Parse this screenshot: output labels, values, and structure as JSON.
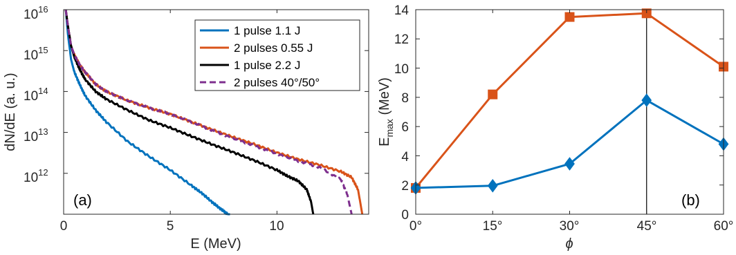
{
  "colors": {
    "blue": "#0072BD",
    "orange": "#D95319",
    "black": "#000000",
    "purple": "#7E2F8E",
    "axis": "#262626"
  },
  "chart_data": [
    {
      "type": "line",
      "panel_label": "(a)",
      "xlabel": "E (MeV)",
      "ylabel": "dN/dE (a. u.)",
      "xlim": [
        0,
        14.3
      ],
      "ylim": [
        100000000000.0,
        1e+16
      ],
      "yscale": "log",
      "x_ticks": [
        0,
        5,
        10
      ],
      "x_tick_labels": [
        "0",
        "5",
        "10"
      ],
      "y_ticks": [
        1000000000000.0,
        10000000000000.0,
        100000000000000.0,
        1000000000000000.0,
        1e+16
      ],
      "y_tick_labels": [
        {
          "base": "10",
          "exp": "12"
        },
        {
          "base": "10",
          "exp": "13"
        },
        {
          "base": "10",
          "exp": "14"
        },
        {
          "base": "10",
          "exp": "15"
        },
        {
          "base": "10",
          "exp": "16"
        }
      ],
      "legend_position": "top-right",
      "series": [
        {
          "name": "1 pulse 1.1 J",
          "color": "#0072BD",
          "style": "solid",
          "x": [
            0.1,
            0.2,
            0.35,
            0.5,
            0.75,
            1.0,
            1.5,
            2.0,
            3.0,
            4.0,
            5.0,
            6.0,
            6.5,
            7.0,
            7.4,
            7.7,
            7.8
          ],
          "y": [
            1e+16,
            2500000000000000.0,
            600000000000000.0,
            300000000000000.0,
            150000000000000.0,
            80000000000000.0,
            35000000000000.0,
            18000000000000.0,
            6000000000000.0,
            2600000000000.0,
            1200000000000.0,
            500000000000.0,
            320000000000.0,
            190000000000.0,
            130000000000.0,
            100000000000.0,
            100000000000.0
          ]
        },
        {
          "name": "2 pulses 0.55 J",
          "color": "#D95319",
          "style": "solid",
          "x": [
            0.1,
            0.2,
            0.35,
            0.5,
            0.75,
            1.0,
            1.5,
            2.0,
            3.0,
            4.0,
            5.0,
            6.0,
            7.0,
            8.0,
            9.0,
            10.0,
            11.0,
            12.0,
            13.0,
            13.5,
            13.8,
            14.0
          ],
          "y": [
            1e+16,
            4000000000000000.0,
            1300000000000000.0,
            800000000000000.0,
            450000000000000.0,
            300000000000000.0,
            150000000000000.0,
            100000000000000.0,
            60000000000000.0,
            40000000000000.0,
            28000000000000.0,
            18000000000000.0,
            11500000000000.0,
            7500000000000.0,
            5000000000000.0,
            3200000000000.0,
            2200000000000.0,
            1600000000000.0,
            1100000000000.0,
            800000000000.0,
            400000000000.0,
            100000000000.0
          ]
        },
        {
          "name": "1 pulse 2.2 J",
          "color": "#000000",
          "style": "solid",
          "x": [
            0.1,
            0.2,
            0.35,
            0.5,
            0.75,
            1.0,
            1.5,
            2.0,
            3.0,
            4.0,
            5.0,
            6.0,
            7.0,
            8.0,
            9.0,
            10.0,
            10.5,
            11.0,
            11.4,
            11.6,
            11.7
          ],
          "y": [
            1e+16,
            4000000000000000.0,
            1300000000000000.0,
            700000000000000.0,
            350000000000000.0,
            200000000000000.0,
            100000000000000.0,
            65000000000000.0,
            35000000000000.0,
            20000000000000.0,
            13000000000000.0,
            8000000000000.0,
            5000000000000.0,
            3200000000000.0,
            2000000000000.0,
            1200000000000.0,
            850000000000.0,
            650000000000.0,
            400000000000.0,
            200000000000.0,
            100000000000.0
          ]
        },
        {
          "name": "2 pulses 40°/50°",
          "color": "#7E2F8E",
          "style": "dashed",
          "x": [
            0.1,
            0.2,
            0.35,
            0.5,
            0.75,
            1.0,
            1.5,
            2.0,
            3.0,
            4.0,
            5.0,
            6.0,
            7.0,
            8.0,
            9.0,
            10.0,
            11.0,
            12.0,
            13.0,
            13.3,
            13.5
          ],
          "y": [
            1e+16,
            4000000000000000.0,
            1300000000000000.0,
            800000000000000.0,
            450000000000000.0,
            300000000000000.0,
            150000000000000.0,
            100000000000000.0,
            60000000000000.0,
            40000000000000.0,
            28000000000000.0,
            18000000000000.0,
            11000000000000.0,
            7000000000000.0,
            4600000000000.0,
            3000000000000.0,
            2000000000000.0,
            1400000000000.0,
            700000000000.0,
            300000000000.0,
            100000000000.0
          ]
        }
      ]
    },
    {
      "type": "line",
      "panel_label": "(b)",
      "xlabel": "ϕ",
      "ylabel_main": "E",
      "ylabel_sub": "max",
      "ylabel_rest": " (MeV)",
      "categories": [
        "0°",
        "15°",
        "30°",
        "45°",
        "60°"
      ],
      "x": [
        0,
        15,
        30,
        45,
        60
      ],
      "xlim": [
        0,
        60
      ],
      "ylim": [
        0,
        14
      ],
      "y_ticks": [
        0,
        2,
        4,
        6,
        8,
        10,
        12,
        14
      ],
      "y_tick_labels": [
        "0",
        "2",
        "4",
        "6",
        "8",
        "10",
        "12",
        "14"
      ],
      "vertical_line_x": 45,
      "series": [
        {
          "color": "#D95319",
          "marker": "square",
          "values": [
            1.8,
            8.2,
            13.5,
            13.75,
            10.1
          ]
        },
        {
          "color": "#0072BD",
          "marker": "diamond",
          "values": [
            1.8,
            1.95,
            3.45,
            7.8,
            4.8
          ]
        }
      ]
    }
  ]
}
